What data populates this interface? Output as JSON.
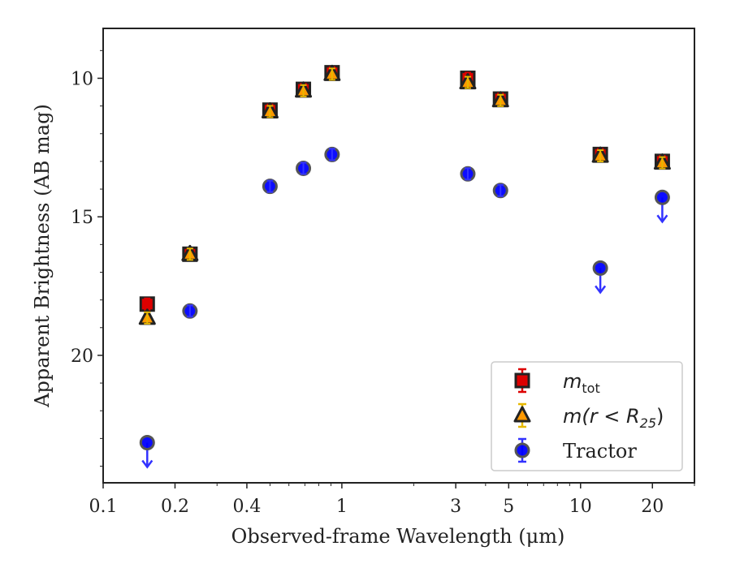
{
  "chart_data": {
    "type": "scatter",
    "title": "",
    "xlabel": "Observed-frame Wavelength (μm)",
    "ylabel": "Apparent Brightness (AB mag)",
    "xscale": "log",
    "xlim": [
      0.1,
      30
    ],
    "ylim": [
      24.6,
      8.2
    ],
    "y_inverted": true,
    "x_ticks": [
      {
        "value": 0.1,
        "label": "0.1"
      },
      {
        "value": 0.2,
        "label": "0.2"
      },
      {
        "value": 0.4,
        "label": "0.4"
      },
      {
        "value": 1,
        "label": "1"
      },
      {
        "value": 3,
        "label": "3"
      },
      {
        "value": 5,
        "label": "5"
      },
      {
        "value": 10,
        "label": "10"
      },
      {
        "value": 20,
        "label": "20"
      }
    ],
    "y_ticks": [
      {
        "value": 10,
        "label": "10"
      },
      {
        "value": 15,
        "label": "15"
      },
      {
        "value": 20,
        "label": "20"
      }
    ],
    "legend_position": "lower-right",
    "grid": false,
    "series": [
      {
        "name": "m_tot",
        "legend_main": "m",
        "legend_sub": "tot",
        "marker": "square",
        "color": "#dd0000",
        "edge": "#222222",
        "errcolor": "#dd0000",
        "points": [
          {
            "x": 0.153,
            "y": 18.15
          },
          {
            "x": 0.231,
            "y": 16.35
          },
          {
            "x": 0.5,
            "y": 11.15
          },
          {
            "x": 0.69,
            "y": 10.4
          },
          {
            "x": 0.91,
            "y": 9.8
          },
          {
            "x": 3.37,
            "y": 10.0
          },
          {
            "x": 4.62,
            "y": 10.75
          },
          {
            "x": 12.1,
            "y": 12.75
          },
          {
            "x": 22.0,
            "y": 13.0
          }
        ]
      },
      {
        "name": "m(r < R_25)",
        "legend_main": "m(r < R",
        "legend_sub": "25",
        "legend_tail": ")",
        "marker": "triangle",
        "color": "#ff9900",
        "edge": "#222222",
        "errcolor": "#e6b800",
        "points": [
          {
            "x": 0.153,
            "y": 18.65
          },
          {
            "x": 0.231,
            "y": 16.35
          },
          {
            "x": 0.5,
            "y": 11.2
          },
          {
            "x": 0.69,
            "y": 10.45
          },
          {
            "x": 0.91,
            "y": 9.85
          },
          {
            "x": 3.37,
            "y": 10.15
          },
          {
            "x": 4.62,
            "y": 10.8
          },
          {
            "x": 12.1,
            "y": 12.8
          },
          {
            "x": 22.0,
            "y": 13.05
          }
        ]
      },
      {
        "name": "Tractor",
        "marker": "circle",
        "color": "#0000ff",
        "edge": "#555555",
        "errcolor": "#3333ff",
        "points": [
          {
            "x": 0.153,
            "y": 23.15,
            "upper_limit": true
          },
          {
            "x": 0.231,
            "y": 18.4
          },
          {
            "x": 0.5,
            "y": 13.9
          },
          {
            "x": 0.69,
            "y": 13.25
          },
          {
            "x": 0.91,
            "y": 12.75
          },
          {
            "x": 3.37,
            "y": 13.45
          },
          {
            "x": 4.62,
            "y": 14.05
          },
          {
            "x": 12.1,
            "y": 16.85,
            "upper_limit": true
          },
          {
            "x": 22.0,
            "y": 14.3,
            "upper_limit": true
          }
        ]
      }
    ]
  }
}
